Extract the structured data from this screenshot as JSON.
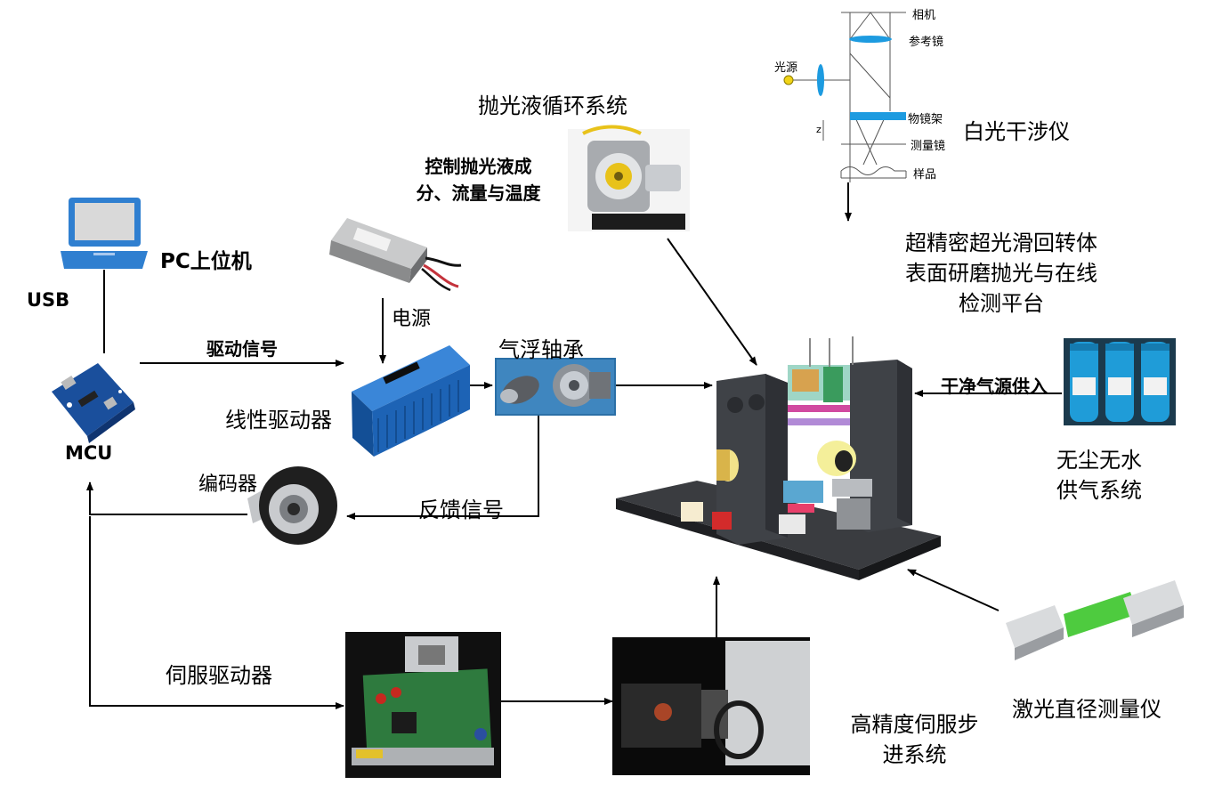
{
  "interferometer": {
    "camera": "相机",
    "reference_mirror": "参考镜",
    "light_source": "光源",
    "objective_mount": "物镜架",
    "z_axis": "z",
    "measuring_lens": "测量镜",
    "sample": "样品",
    "title": "白光干涉仪"
  },
  "polishing_system": {
    "title": "抛光液循环系统",
    "note": "控制抛光液成\n分、流量与温度"
  },
  "platform_title": "超精密超光滑回转体\n表面研磨抛光与在线\n检测平台",
  "pc": {
    "label": "PC上位机"
  },
  "usb_label": "USB",
  "power_label": "电源",
  "drive_signal_label": "驱动信号",
  "air_bearing_label": "气浮轴承",
  "linear_driver_label": "线性驱动器",
  "mcu_label": "MCU",
  "encoder_label": "编码器",
  "feedback_label": "反馈信号",
  "clean_air_label": "干净气源供入",
  "air_supply_label": "无尘无水\n供气系统",
  "servo_driver_label": "伺服驱动器",
  "laser_gauge_label": "激光直径测量仪",
  "servo_stepper_label": "高精度伺服步\n进系统",
  "colors": {
    "line": "#000000",
    "laptop_blue": "#2f7fd0",
    "driver_blue": "#1d63b5",
    "filter_blue": "#1f9cd8",
    "mcu_blue": "#1a4f9c",
    "optic_blue": "#1d9be0"
  }
}
